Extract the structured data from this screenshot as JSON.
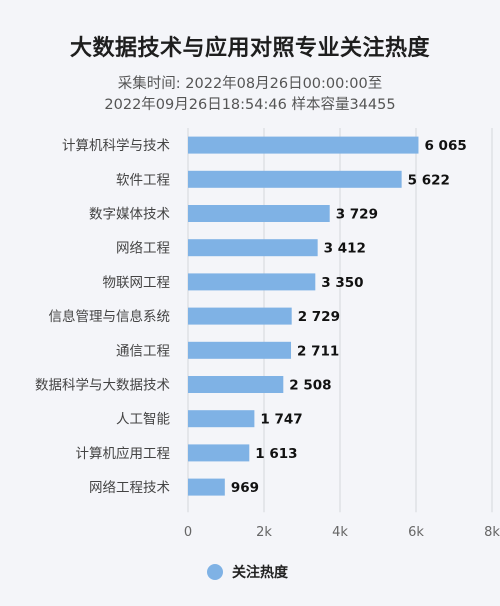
{
  "header": {
    "title": "大数据技术与应用对照专业关注热度",
    "subtitle_line1": "采集时间: 2022年08月26日00:00:00至",
    "subtitle_line2": "2022年09月26日18:54:46 样本容量34455"
  },
  "chart_data": {
    "type": "bar",
    "orientation": "horizontal",
    "categories": [
      "计算机科学与技术",
      "软件工程",
      "数字媒体技术",
      "网络工程",
      "物联网工程",
      "信息管理与信息系统",
      "通信工程",
      "数据科学与大数据技术",
      "人工智能",
      "计算机应用工程",
      "网络工程技术"
    ],
    "values": [
      6065,
      5622,
      3729,
      3412,
      3350,
      2729,
      2711,
      2508,
      1747,
      1613,
      969
    ],
    "value_labels": [
      "6 065",
      "5 622",
      "3 729",
      "3 412",
      "3 350",
      "2 729",
      "2 711",
      "2 508",
      "1 747",
      "1 613",
      "969"
    ],
    "series": [
      {
        "name": "关注热度",
        "values": [
          6065,
          5622,
          3729,
          3412,
          3350,
          2729,
          2711,
          2508,
          1747,
          1613,
          969
        ]
      }
    ],
    "xlim": [
      0,
      8000
    ],
    "x_ticks": [
      0,
      2000,
      4000,
      6000,
      8000
    ],
    "x_tick_labels": [
      "0",
      "2k",
      "4k",
      "6k",
      "8k"
    ],
    "grid": true,
    "legend_position": "bottom",
    "bar_color": "#7fb2e5"
  }
}
